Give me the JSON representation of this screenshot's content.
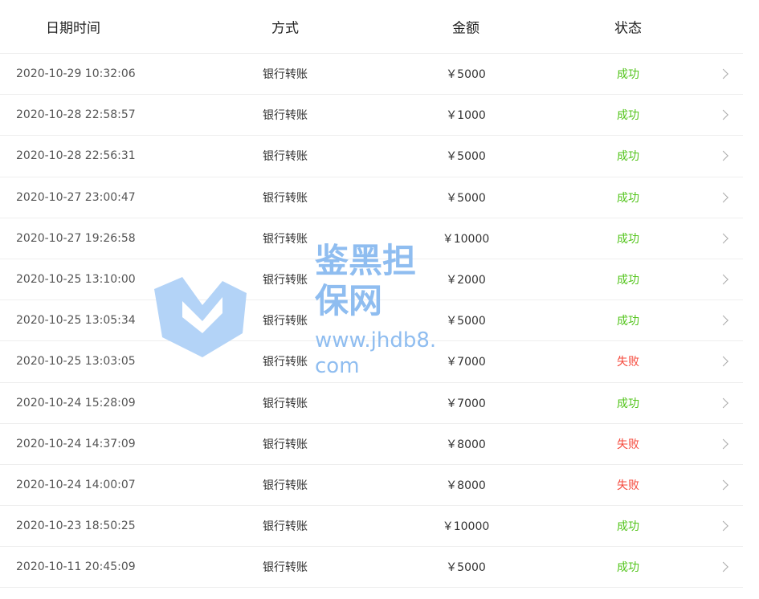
{
  "columns": [
    "日期时间",
    "方式",
    "金额",
    "状态"
  ],
  "colors": {
    "success": "#52c41a",
    "fail": "#f5483b"
  },
  "rows": [
    {
      "date": "2020-10-29 10:32:06",
      "method": "银行转账",
      "amount": "￥5000",
      "status": "成功",
      "ok": true
    },
    {
      "date": "2020-10-28 22:58:57",
      "method": "银行转账",
      "amount": "￥1000",
      "status": "成功",
      "ok": true
    },
    {
      "date": "2020-10-28 22:56:31",
      "method": "银行转账",
      "amount": "￥5000",
      "status": "成功",
      "ok": true
    },
    {
      "date": "2020-10-27 23:00:47",
      "method": "银行转账",
      "amount": "￥5000",
      "status": "成功",
      "ok": true
    },
    {
      "date": "2020-10-27 19:26:58",
      "method": "银行转账",
      "amount": "￥10000",
      "status": "成功",
      "ok": true
    },
    {
      "date": "2020-10-25 13:10:00",
      "method": "银行转账",
      "amount": "￥2000",
      "status": "成功",
      "ok": true
    },
    {
      "date": "2020-10-25 13:05:34",
      "method": "银行转账",
      "amount": "￥5000",
      "status": "成功",
      "ok": true
    },
    {
      "date": "2020-10-25 13:03:05",
      "method": "银行转账",
      "amount": "￥7000",
      "status": "失败",
      "ok": false
    },
    {
      "date": "2020-10-24 15:28:09",
      "method": "银行转账",
      "amount": "￥7000",
      "status": "成功",
      "ok": true
    },
    {
      "date": "2020-10-24 14:37:09",
      "method": "银行转账",
      "amount": "￥8000",
      "status": "失败",
      "ok": false
    },
    {
      "date": "2020-10-24 14:00:07",
      "method": "银行转账",
      "amount": "￥8000",
      "status": "失败",
      "ok": false
    },
    {
      "date": "2020-10-23 18:50:25",
      "method": "银行转账",
      "amount": "￥10000",
      "status": "成功",
      "ok": true
    },
    {
      "date": "2020-10-11 20:45:09",
      "method": "银行转账",
      "amount": "￥5000",
      "status": "成功",
      "ok": true
    }
  ],
  "watermark": {
    "name": "鉴黑担保网",
    "url": "www.jhdb8.com"
  }
}
